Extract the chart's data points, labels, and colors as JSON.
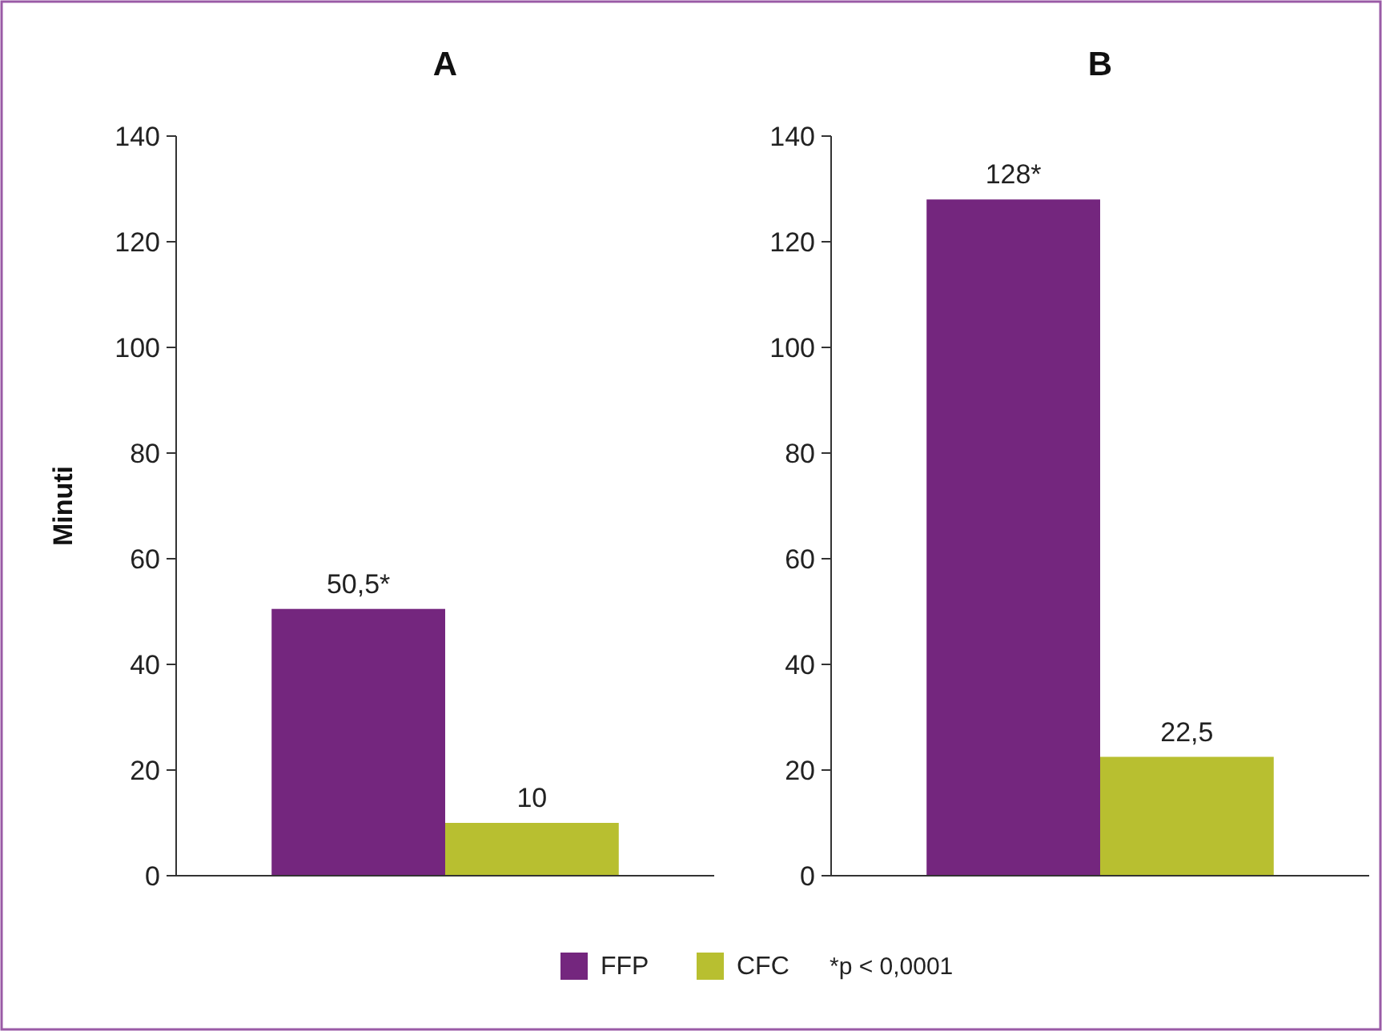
{
  "chart_data": [
    {
      "type": "bar",
      "title": "A",
      "ylabel": "Minuti",
      "categories": [
        null
      ],
      "ylim": [
        0,
        140
      ],
      "yticks": [
        0,
        20,
        40,
        60,
        80,
        100,
        120,
        140
      ],
      "legend": "bottom",
      "annotations": [
        "*p < 0,0001"
      ],
      "series": [
        {
          "name": "FFP",
          "color": "#74267e",
          "values": [
            50.5
          ],
          "value_labels": [
            "50,5*"
          ]
        },
        {
          "name": "CFC",
          "color": "#b8bf30",
          "values": [
            10
          ],
          "value_labels": [
            "10"
          ]
        }
      ]
    },
    {
      "type": "bar",
      "title": "B",
      "categories": [
        null
      ],
      "ylim": [
        0,
        140
      ],
      "yticks": [
        0,
        20,
        40,
        60,
        80,
        100,
        120,
        140
      ],
      "series": [
        {
          "color": "#74267e",
          "values": [
            128
          ],
          "value_labels": [
            "128*"
          ]
        },
        {
          "color": "#b8bf30",
          "values": [
            22.5
          ],
          "value_labels": [
            "22,5"
          ]
        }
      ]
    }
  ]
}
